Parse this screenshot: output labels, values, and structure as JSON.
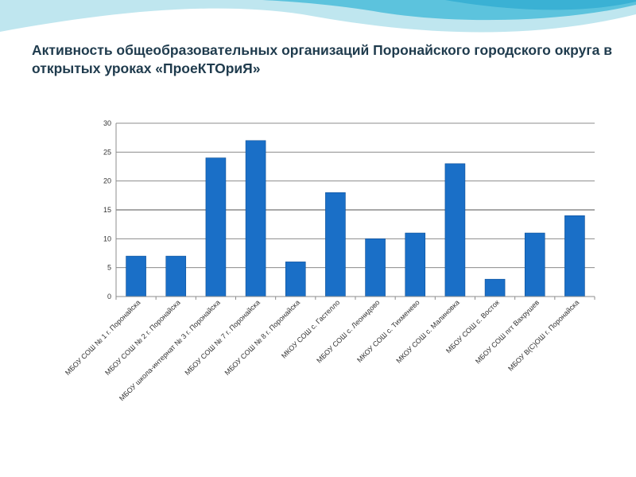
{
  "slide": {
    "title": "Активность общеобразовательных организаций Поронайского городского округа в открытых уроках «ПроеКТОриЯ»"
  },
  "colors": {
    "bar": "#1a6fc7",
    "bar_edge": "#0d4f98",
    "grid": "#8c8c8c",
    "wave_light": "#bfe6ef",
    "wave_dark": "#5cc3dd"
  },
  "chart_data": {
    "type": "bar",
    "title": "",
    "xlabel": "",
    "ylabel": "",
    "ylim": [
      0,
      30
    ],
    "yticks": [
      0,
      5,
      10,
      15,
      20,
      25,
      30
    ],
    "grid": true,
    "categories": [
      "МБОУ СОШ № 1 г. Поронайска",
      "МБОУ СОШ № 2 г. Поронайска",
      "МБОУ школа-интернат № 3 г. Поронайска",
      "МБОУ СОШ № 7 г. Поронайска",
      "МБОУ СОШ № 8 г. Поронайска",
      "МКОУ СОШ с. Гастелло",
      "МБОУ СОШ с. Леонидово",
      "МКОУ СОШ с. Тихменево",
      "МКОУ СОШ с. Малиновка",
      "МБОУ СОШ с. Восток",
      "МБОУ СОШ пгт Вахрушев",
      "МБОУ В(С)ОШ г. Поронайска"
    ],
    "values": [
      7,
      7,
      24,
      27,
      6,
      18,
      10,
      11,
      23,
      3,
      11,
      14
    ]
  }
}
